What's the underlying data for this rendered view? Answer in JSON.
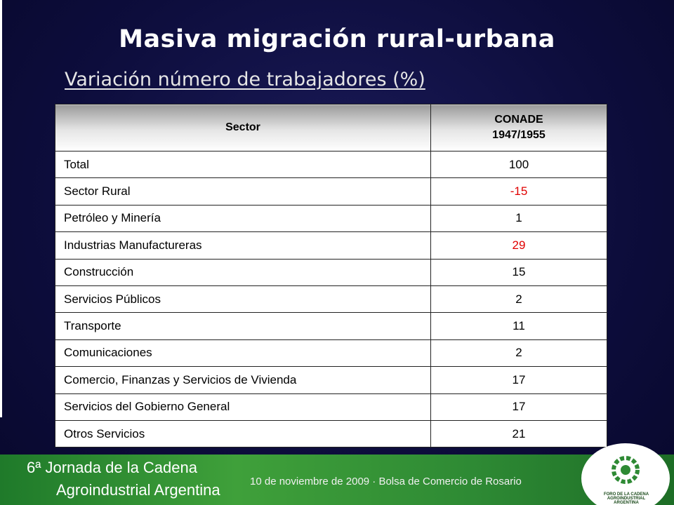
{
  "title": "Masiva migración rural-urbana",
  "subtitle": "Variación número de trabajadores (%)",
  "table": {
    "header": {
      "sector": "Sector",
      "value": [
        "CONADE",
        "1947/1955"
      ]
    },
    "rows": [
      [
        "Total",
        100
      ],
      [
        "Sector Rural",
        -15
      ],
      [
        "Petróleo y Minería",
        1
      ],
      [
        "Industrias Manufactureras",
        29
      ],
      [
        "Construcción",
        15
      ],
      [
        "Servicios Públicos",
        2
      ],
      [
        "Transporte",
        11
      ],
      [
        "Comunicaciones",
        2
      ],
      [
        "Comercio, Finanzas y Servicios de Vivienda",
        17
      ],
      [
        "Servicios del Gobierno General",
        17
      ],
      [
        "Otros Servicios",
        21
      ]
    ],
    "value_colors": [
      "#000000",
      "#e00000",
      "#000000",
      "#e00000",
      "#000000",
      "#000000",
      "#000000",
      "#000000",
      "#000000",
      "#000000",
      "#000000"
    ]
  },
  "footer": {
    "event_line_1": "6ª Jornada de la Cadena",
    "event_line_2": "Agroindustrial Argentina",
    "date_line": "10 de noviembre de 2009 · Bolsa de Comercio de Rosario",
    "logo_text": "FORO DE LA CADENA AGROINDUSTRIAL ARGENTINA"
  }
}
